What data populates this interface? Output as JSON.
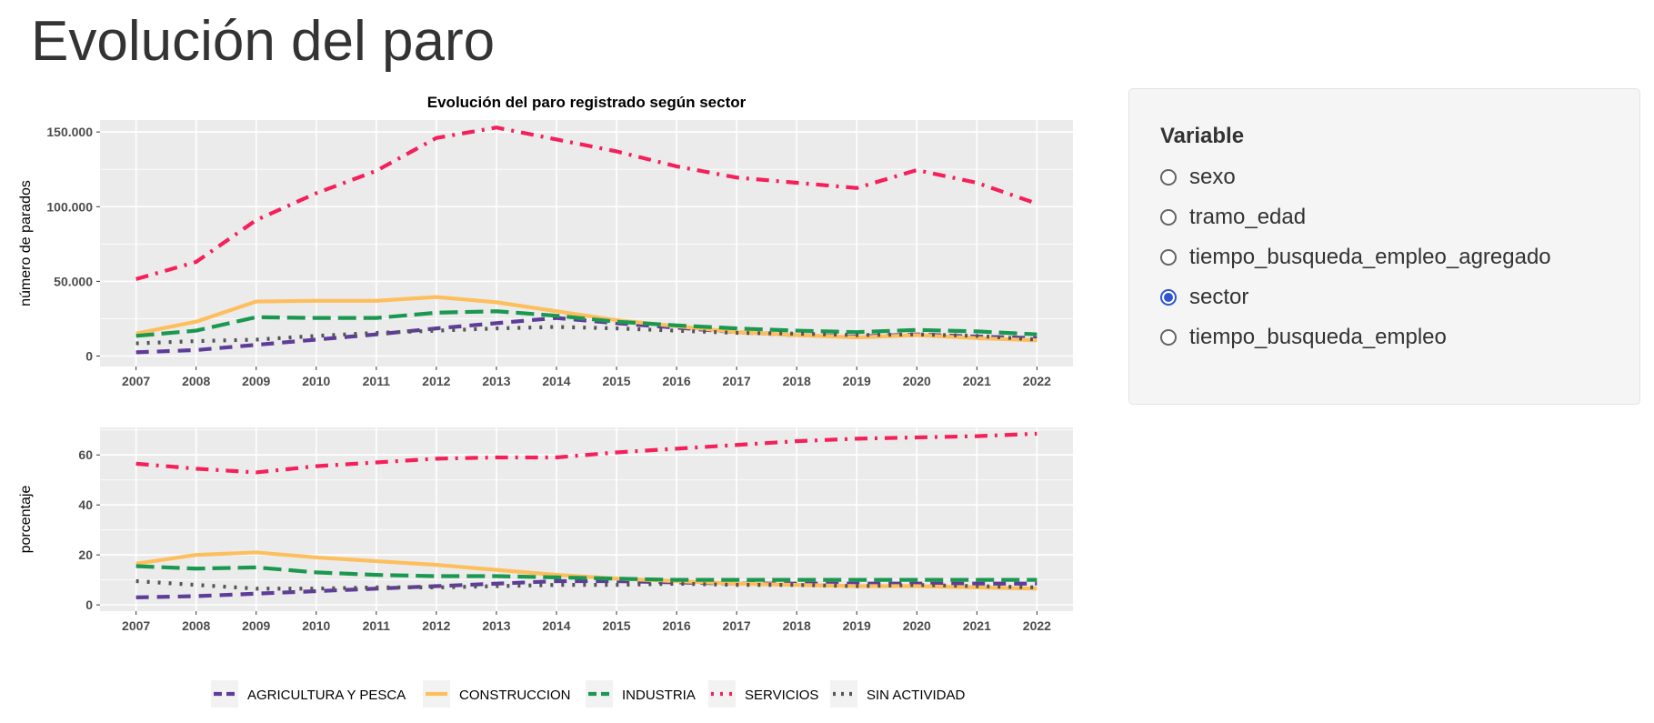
{
  "page": {
    "title": "Evolución del paro"
  },
  "sidebar": {
    "label": "Variable",
    "options": [
      {
        "label": "sexo",
        "checked": false
      },
      {
        "label": "tramo_edad",
        "checked": false
      },
      {
        "label": "tiempo_busqueda_empleo_agregado",
        "checked": false
      },
      {
        "label": "sector",
        "checked": true
      },
      {
        "label": "tiempo_busqueda_empleo",
        "checked": false
      }
    ]
  },
  "chart_data": [
    {
      "type": "line",
      "title": "Evolución del paro registrado según sector",
      "xlabel": "",
      "ylabel": "número de parados",
      "x": [
        2007,
        2008,
        2009,
        2010,
        2011,
        2012,
        2013,
        2014,
        2015,
        2016,
        2017,
        2018,
        2019,
        2020,
        2021,
        2022
      ],
      "ylim": [
        -7000,
        158000
      ],
      "yticks": [
        0,
        50000,
        100000,
        150000
      ],
      "ytick_labels": [
        "0",
        "50.000",
        "100.000",
        "150.000"
      ],
      "grid": true,
      "series": [
        {
          "name": "AGRICULTURA Y PESCA",
          "color": "#5e3c99",
          "dash": "dashed",
          "values": [
            2500,
            4000,
            7500,
            11000,
            14500,
            18500,
            22000,
            25500,
            22000,
            19000,
            16000,
            14000,
            13000,
            14500,
            13000,
            12000
          ]
        },
        {
          "name": "CONSTRUCCION",
          "color": "#fdbf5d",
          "dash": "solid",
          "values": [
            15000,
            23000,
            36500,
            37000,
            37000,
            39500,
            36000,
            30000,
            24000,
            20000,
            16000,
            14000,
            12500,
            14000,
            12000,
            10500
          ]
        },
        {
          "name": "INDUSTRIA",
          "color": "#1a9850",
          "dash": "longdash",
          "values": [
            13500,
            17000,
            26000,
            25500,
            25500,
            29000,
            30000,
            27000,
            23000,
            20500,
            18500,
            17000,
            16000,
            17500,
            16500,
            14500
          ]
        },
        {
          "name": "SERVICIOS",
          "color": "#f5205a",
          "dash": "dotdash",
          "values": [
            51500,
            63000,
            91000,
            109000,
            124000,
            146000,
            153000,
            145000,
            137000,
            127000,
            119500,
            116000,
            112500,
            124500,
            116000,
            102000
          ]
        },
        {
          "name": "SIN ACTIVIDAD",
          "color": "#555555",
          "dash": "dotted",
          "values": [
            8500,
            10000,
            11000,
            13500,
            15500,
            17000,
            18500,
            19500,
            18500,
            17000,
            15500,
            15000,
            14000,
            14500,
            13500,
            11000
          ]
        }
      ]
    },
    {
      "type": "line",
      "xlabel": "",
      "ylabel": "porcentaje",
      "x": [
        2007,
        2008,
        2009,
        2010,
        2011,
        2012,
        2013,
        2014,
        2015,
        2016,
        2017,
        2018,
        2019,
        2020,
        2021,
        2022
      ],
      "ylim": [
        -2.5,
        71
      ],
      "yticks": [
        0,
        20,
        40,
        60
      ],
      "ytick_labels": [
        "0",
        "20",
        "40",
        "60"
      ],
      "grid": true,
      "series": [
        {
          "name": "AGRICULTURA Y PESCA",
          "color": "#5e3c99",
          "dash": "dashed",
          "values": [
            3,
            3.5,
            4.5,
            5.5,
            6.5,
            7.5,
            8.5,
            9.5,
            9.5,
            9,
            8.5,
            8.5,
            8.5,
            8.5,
            8.5,
            8.5
          ]
        },
        {
          "name": "CONSTRUCCION",
          "color": "#fdbf5d",
          "dash": "solid",
          "values": [
            16.5,
            20,
            21,
            19,
            17.5,
            16,
            14,
            12,
            10.5,
            9.5,
            8.5,
            8,
            7.5,
            7.5,
            7,
            6.5
          ]
        },
        {
          "name": "INDUSTRIA",
          "color": "#1a9850",
          "dash": "longdash",
          "values": [
            15.5,
            14.5,
            15,
            13,
            12,
            11.5,
            11.5,
            11,
            10.5,
            10,
            10,
            10,
            10,
            10,
            10,
            10
          ]
        },
        {
          "name": "SERVICIOS",
          "color": "#f5205a",
          "dash": "dotdash",
          "values": [
            56.5,
            54.5,
            53,
            55.5,
            57,
            58.5,
            59,
            59,
            61,
            62.5,
            64,
            65.5,
            66.5,
            67,
            67.5,
            68.5
          ]
        },
        {
          "name": "SIN ACTIVIDAD",
          "color": "#555555",
          "dash": "dotted",
          "values": [
            9.5,
            8,
            6.5,
            6.5,
            7,
            7,
            7.5,
            8,
            8,
            8.5,
            8,
            8,
            7.5,
            8,
            7.5,
            7
          ]
        }
      ]
    }
  ],
  "legend": [
    "AGRICULTURA Y PESCA",
    "CONSTRUCCION",
    "INDUSTRIA",
    "SERVICIOS",
    "SIN ACTIVIDAD"
  ]
}
